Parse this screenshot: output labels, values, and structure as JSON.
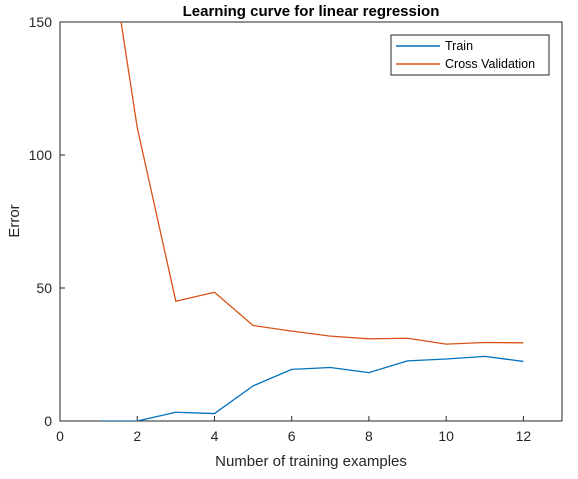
{
  "chart_data": {
    "type": "line",
    "title": "Learning curve for linear regression",
    "xlabel": "Number of training examples",
    "ylabel": "Error",
    "xlim": [
      0,
      13
    ],
    "ylim": [
      0,
      150
    ],
    "x_ticks": [
      0,
      2,
      4,
      6,
      8,
      10,
      12
    ],
    "y_ticks": [
      0,
      50,
      100,
      150
    ],
    "grid": false,
    "legend_position": "top-right",
    "x": [
      1,
      2,
      3,
      4,
      5,
      6,
      7,
      8,
      9,
      10,
      11,
      12
    ],
    "series": [
      {
        "name": "Train",
        "color": "#0072BD",
        "values": [
          0.0,
          0.0,
          3.3,
          2.8,
          13.2,
          19.4,
          20.1,
          18.2,
          22.6,
          23.3,
          24.3,
          22.4
        ]
      },
      {
        "name": "Cross Validation",
        "color": "#D95319",
        "values": [
          205.1,
          110.3,
          45.0,
          48.4,
          35.9,
          33.8,
          31.9,
          30.9,
          31.1,
          28.9,
          29.5,
          29.4
        ]
      }
    ]
  }
}
